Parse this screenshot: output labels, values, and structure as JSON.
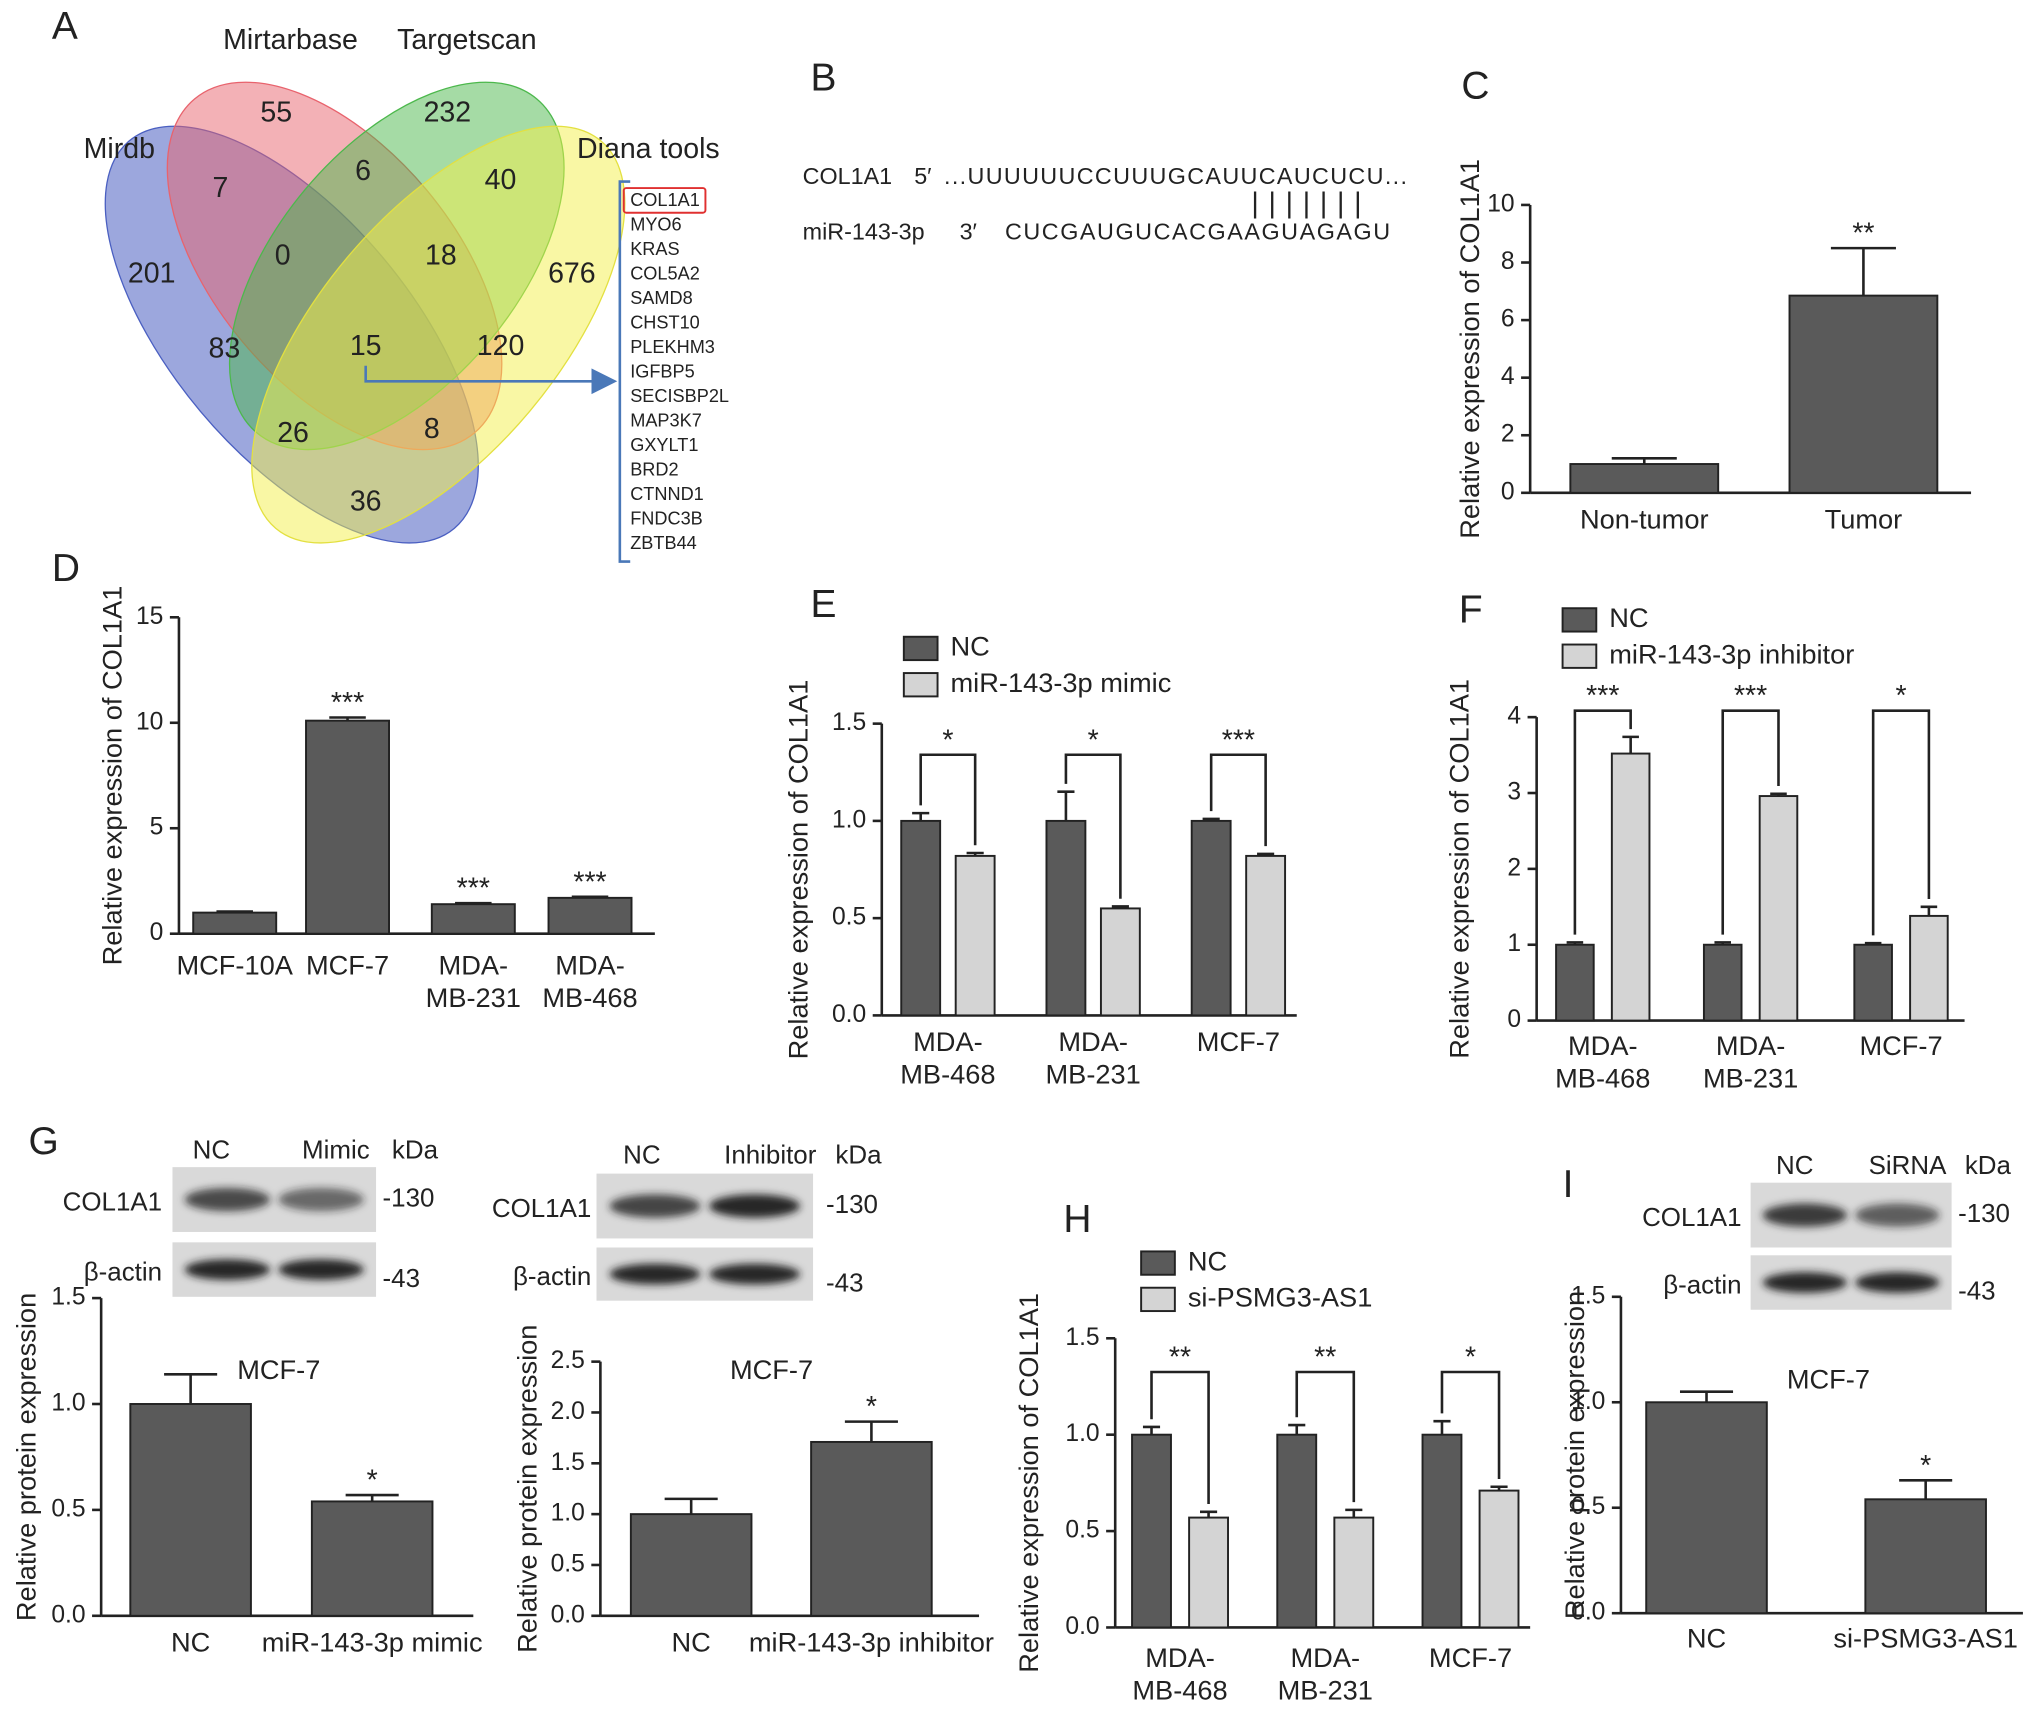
{
  "panels": [
    "A",
    "B",
    "C",
    "D",
    "E",
    "F",
    "G",
    "H",
    "I"
  ],
  "venn": {
    "sets": [
      "Mirtarbase",
      "Targetscan",
      "Mirdb",
      "Diana tools"
    ],
    "regions": [
      55,
      232,
      7,
      6,
      40,
      201,
      0,
      18,
      676,
      83,
      15,
      120,
      26,
      8,
      36
    ],
    "genes": [
      "COL1A1",
      "MYO6",
      "KRAS",
      "COL5A2",
      "SAMD8",
      "CHST10",
      "PLEKHM3",
      "IGFBP5",
      "SECISBP2L",
      "MAP3K7",
      "GXYLT1",
      "BRD2",
      "CTNND1",
      "FNDC3B",
      "ZBTB44"
    ]
  },
  "sequence": {
    "rows": [
      {
        "label": "COL1A1",
        "end": "5′",
        "seq": "...UUUUUUCCUUUGCAUUCAUCUCU..."
      },
      {
        "label": "miR-143-3p",
        "end": "3′",
        "seq": "CUCGAUGUCACGAAGUAGAGU"
      }
    ],
    "pairing": "|||||||"
  },
  "blots": [
    {
      "lanes": [
        "NC",
        "Mimic"
      ],
      "unit": "kDa",
      "proteins": [
        "COL1A1",
        "β-actin"
      ],
      "markers": [
        "-130",
        "-43"
      ]
    },
    {
      "lanes": [
        "NC",
        "Inhibitor"
      ],
      "unit": "kDa",
      "proteins": [
        "COL1A1",
        "β-actin"
      ],
      "markers": [
        "-130",
        "-43"
      ]
    },
    {
      "lanes": [
        "NC",
        "SiRNA"
      ],
      "unit": "kDa",
      "proteins": [
        "COL1A1",
        "β-actin"
      ],
      "markers": [
        "-130",
        "-43"
      ]
    }
  ],
  "chart_data": [
    {
      "type": "bar",
      "ylabel": "Relative expression of COL1A1",
      "categories": [
        "Non-tumor",
        "Tumor"
      ],
      "values": [
        1,
        6.85
      ],
      "errors": [
        0.2,
        1.65
      ],
      "significance": [
        null,
        "**"
      ],
      "color": "#5a5a5a",
      "ylim": [
        0,
        10
      ],
      "yticks": [
        0,
        2,
        4,
        6,
        8,
        10
      ]
    },
    {
      "type": "bar",
      "ylabel": "Relative expression of COL1A1",
      "categories": [
        "MCF-10A",
        "MCF-7",
        [
          "MDA-",
          "MB-231"
        ],
        [
          "MDA-",
          "MB-468"
        ]
      ],
      "values": [
        1,
        10.1,
        1.4,
        1.7
      ],
      "errors": [
        0.05,
        0.15,
        0.05,
        0.05
      ],
      "significance": [
        null,
        "***",
        "***",
        "***"
      ],
      "color": "#5a5a5a",
      "ylim": [
        0,
        15
      ],
      "yticks": [
        0,
        5,
        10,
        15
      ]
    },
    {
      "type": "bar",
      "ylabel": "Relative expression of COL1A1",
      "categories": [
        [
          "MDA-",
          "MB-468"
        ],
        [
          "MDA-",
          "MB-231"
        ],
        "MCF-7"
      ],
      "series": [
        {
          "name": "NC",
          "color": "#5a5a5a",
          "values": [
            1,
            1,
            1
          ],
          "errors": [
            0.04,
            0.15,
            0.01
          ]
        },
        {
          "name": "miR-143-3p mimic",
          "color": "#d4d4d4",
          "values": [
            0.82,
            0.55,
            0.82
          ],
          "errors": [
            0.015,
            0.01,
            0.01
          ]
        }
      ],
      "significance": [
        "*",
        "*",
        "***"
      ],
      "ylim": [
        0,
        1.5
      ],
      "yticks": [
        {
          "value": 0,
          "label": "0.0"
        },
        {
          "value": 0.5,
          "label": "0.5"
        },
        {
          "value": 1,
          "label": "1.0"
        },
        {
          "value": 1.5,
          "label": "1.5"
        }
      ]
    },
    {
      "type": "bar",
      "ylabel": "Relative expression of COL1A1",
      "categories": [
        [
          "MDA-",
          "MB-468"
        ],
        [
          "MDA-",
          "MB-231"
        ],
        "MCF-7"
      ],
      "series": [
        {
          "name": "NC",
          "color": "#5a5a5a",
          "values": [
            1,
            1,
            1
          ],
          "errors": [
            0.03,
            0.03,
            0.02
          ]
        },
        {
          "name": "miR-143-3p inhibitor",
          "color": "#d4d4d4",
          "values": [
            3.52,
            2.96,
            1.38
          ],
          "errors": [
            0.22,
            0.03,
            0.12
          ]
        }
      ],
      "significance": [
        "***",
        "***",
        "*"
      ],
      "ylim": [
        0,
        4
      ],
      "yticks": [
        0,
        1,
        2,
        3,
        4
      ]
    },
    {
      "type": "bar",
      "title": "MCF-7",
      "ylabel": "Relative protein expression",
      "categories": [
        "NC",
        "miR-143-3p mimic"
      ],
      "values": [
        1,
        0.54
      ],
      "errors": [
        0.14,
        0.03
      ],
      "significance": [
        null,
        "*"
      ],
      "color": "#5a5a5a",
      "ylim": [
        0,
        1.5
      ],
      "yticks": [
        {
          "value": 0,
          "label": "0.0"
        },
        {
          "value": 0.5,
          "label": "0.5"
        },
        {
          "value": 1,
          "label": "1.0"
        },
        {
          "value": 1.5,
          "label": "1.5"
        }
      ]
    },
    {
      "type": "bar",
      "title": "MCF-7",
      "ylabel": "Relative protein expression",
      "categories": [
        "NC",
        "miR-143-3p inhibitor"
      ],
      "values": [
        1,
        1.71
      ],
      "errors": [
        0.15,
        0.2
      ],
      "significance": [
        null,
        "*"
      ],
      "color": "#5a5a5a",
      "ylim": [
        0,
        2.5
      ],
      "yticks": [
        {
          "value": 0,
          "label": "0.0"
        },
        {
          "value": 0.5,
          "label": "0.5"
        },
        {
          "value": 1,
          "label": "1.0"
        },
        {
          "value": 1.5,
          "label": "1.5"
        },
        {
          "value": 2,
          "label": "2.0"
        },
        {
          "value": 2.5,
          "label": "2.5"
        }
      ]
    },
    {
      "type": "bar",
      "ylabel": "Relative expression of COL1A1",
      "categories": [
        [
          "MDA-",
          "MB-468"
        ],
        [
          "MDA-",
          "MB-231"
        ],
        "MCF-7"
      ],
      "series": [
        {
          "name": "NC",
          "color": "#5a5a5a",
          "values": [
            1,
            1,
            1
          ],
          "errors": [
            0.04,
            0.05,
            0.07
          ]
        },
        {
          "name": "si-PSMG3-AS1",
          "color": "#d4d4d4",
          "values": [
            0.57,
            0.57,
            0.71
          ],
          "errors": [
            0.03,
            0.04,
            0.02
          ]
        }
      ],
      "significance": [
        "**",
        "**",
        "*"
      ],
      "ylim": [
        0,
        1.5
      ],
      "yticks": [
        {
          "value": 0,
          "label": "0.0"
        },
        {
          "value": 0.5,
          "label": "0.5"
        },
        {
          "value": 1,
          "label": "1.0"
        },
        {
          "value": 1.5,
          "label": "1.5"
        }
      ]
    },
    {
      "type": "bar",
      "title": "MCF-7",
      "ylabel": "Relative protein expression",
      "categories": [
        "NC",
        "si-PSMG3-AS1"
      ],
      "values": [
        1,
        0.54
      ],
      "errors": [
        0.05,
        0.09
      ],
      "significance": [
        null,
        "*"
      ],
      "color": "#5a5a5a",
      "ylim": [
        0,
        1.5
      ],
      "yticks": [
        {
          "value": 0,
          "label": "0.0"
        },
        {
          "value": 0.5,
          "label": "0.5"
        },
        {
          "value": 1,
          "label": "1.0"
        },
        {
          "value": 1.5,
          "label": "1.5"
        }
      ]
    }
  ]
}
